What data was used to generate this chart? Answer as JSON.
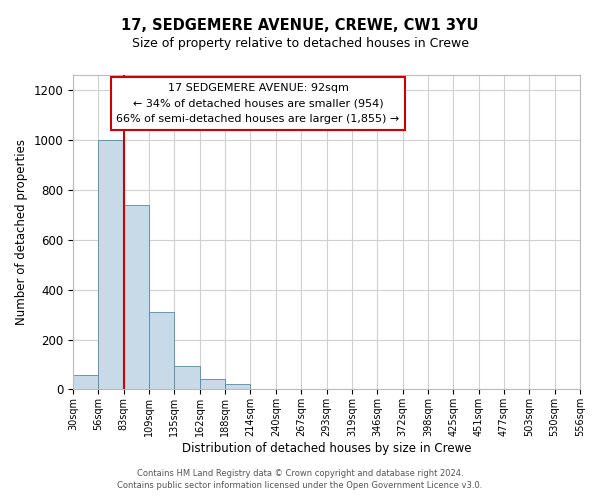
{
  "title": "17, SEDGEMERE AVENUE, CREWE, CW1 3YU",
  "subtitle": "Size of property relative to detached houses in Crewe",
  "xlabel": "Distribution of detached houses by size in Crewe",
  "ylabel": "Number of detached properties",
  "bin_labels": [
    "30sqm",
    "56sqm",
    "83sqm",
    "109sqm",
    "135sqm",
    "162sqm",
    "188sqm",
    "214sqm",
    "240sqm",
    "267sqm",
    "293sqm",
    "319sqm",
    "346sqm",
    "372sqm",
    "398sqm",
    "425sqm",
    "451sqm",
    "477sqm",
    "503sqm",
    "530sqm",
    "556sqm"
  ],
  "bar_heights": [
    57,
    1000,
    740,
    310,
    95,
    40,
    20,
    0,
    0,
    0,
    0,
    0,
    0,
    0,
    0,
    0,
    0,
    0,
    0,
    0
  ],
  "bar_color": "#c8d9e8",
  "bar_edge_color": "#5588aa",
  "ylim": [
    0,
    1260
  ],
  "yticks": [
    0,
    200,
    400,
    600,
    800,
    1000,
    1200
  ],
  "red_line_x": 2.0,
  "red_line_color": "#cc0000",
  "annotation_line1": "17 SEDGEMERE AVENUE: 92sqm",
  "annotation_line2": "← 34% of detached houses are smaller (954)",
  "annotation_line3": "66% of semi-detached houses are larger (1,855) →",
  "annotation_box_color": "#ffffff",
  "annotation_box_edge": "#cc0000",
  "footer_line1": "Contains HM Land Registry data © Crown copyright and database right 2024.",
  "footer_line2": "Contains public sector information licensed under the Open Government Licence v3.0.",
  "background_color": "#ffffff",
  "grid_color": "#d0d0d0"
}
